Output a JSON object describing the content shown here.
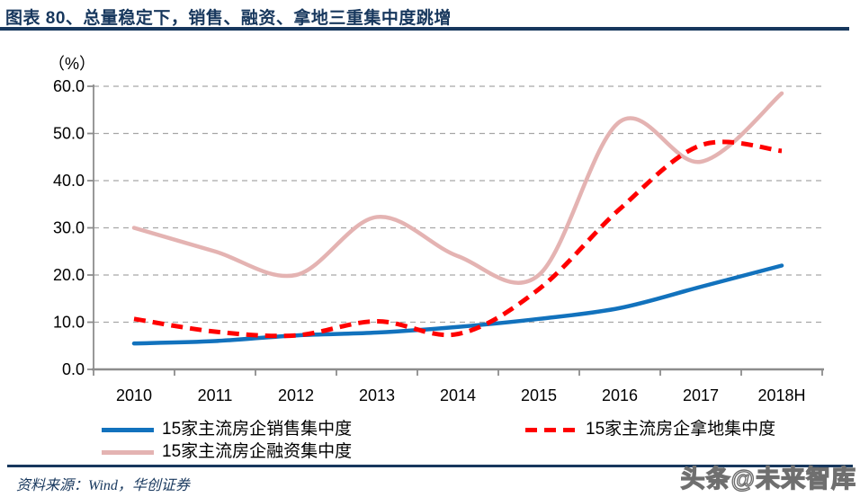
{
  "title": "图表 80、总量稳定下，销售、融资、拿地三重集中度跳增",
  "source_note": "资料来源：Wind，华创证券",
  "watermark": "头条@未来智库",
  "colors": {
    "navy": "#17375D",
    "grid": "#A6A6A6",
    "axis": "#8C8C8C",
    "tick_label": "#000000"
  },
  "chart_data": {
    "type": "line",
    "title": "总量稳定下，销售、融资、拿地三重集中度跳增",
    "unit_label": "（%）",
    "categories": [
      "2010",
      "2011",
      "2012",
      "2013",
      "2014",
      "2015",
      "2016",
      "2017",
      "2018H"
    ],
    "series": [
      {
        "name": "15家主流房企销售集中度",
        "color": "#1272BD",
        "line_style": "solid",
        "values": [
          5.5,
          6.0,
          7.2,
          7.8,
          9.0,
          10.7,
          13.0,
          17.5,
          22.0
        ]
      },
      {
        "name": "15家主流房企拿地集中度",
        "color": "#FF0000",
        "line_style": "dashed",
        "values": [
          10.7,
          8.0,
          7.2,
          10.2,
          7.5,
          17.0,
          34.0,
          47.5,
          46.3
        ]
      },
      {
        "name": "15家主流房企融资集中度",
        "color": "#E4B3B2",
        "line_style": "solid",
        "values": [
          30.0,
          25.0,
          20.0,
          32.3,
          24.0,
          20.0,
          52.5,
          44.0,
          58.5
        ]
      }
    ],
    "ylim": [
      0,
      60
    ],
    "ytick_step": 10,
    "ytick_labels": [
      "0.0",
      "10.0",
      "20.0",
      "30.0",
      "40.0",
      "50.0",
      "60.0"
    ],
    "grid": "horizontal-dashed",
    "legend_position": "bottom",
    "smooth_lines": true
  }
}
